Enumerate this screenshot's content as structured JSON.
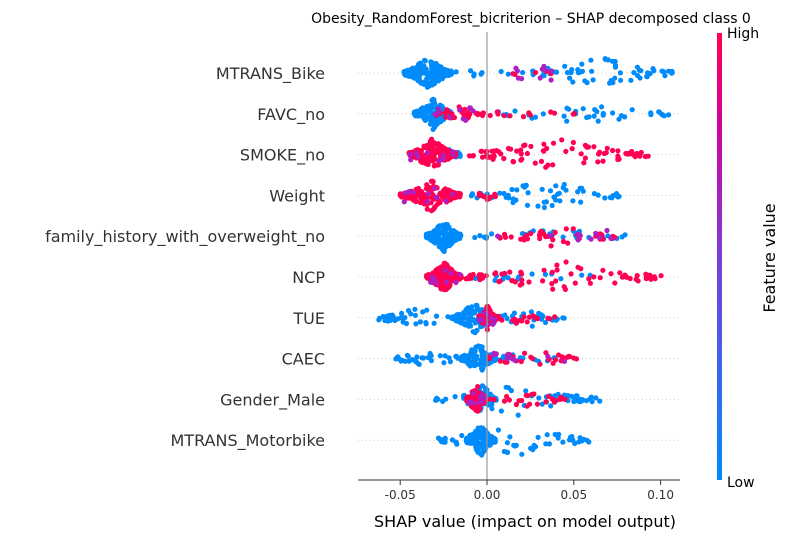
{
  "chart_data": {
    "type": "scatter",
    "title": "Obesity_RandomForest_bicriterion – SHAP decomposed class 0",
    "xlabel": "SHAP value (impact on model output)",
    "xlim": [
      -0.075,
      0.115
    ],
    "xticks": [
      "-0.05",
      "0.00",
      "0.05",
      "0.10"
    ],
    "xtick_values": [
      -0.05,
      0.0,
      0.05,
      0.1
    ],
    "colorbar": {
      "label": "Feature value",
      "high": "High",
      "low": "Low",
      "high_color": "#ff0052",
      "low_color": "#008bfb"
    },
    "zero_line_color": "#999999",
    "features": [
      {
        "name": "MTRANS_Bike",
        "low_ranges": [
          [
            -0.048,
            -0.02,
            200
          ],
          [
            -0.02,
            0.015,
            8
          ],
          [
            0.02,
            0.11,
            60
          ]
        ],
        "high_ranges": [
          [
            0.012,
            0.04,
            5
          ]
        ]
      },
      {
        "name": "FAVC_no",
        "low_ranges": [
          [
            -0.042,
            -0.02,
            160
          ],
          [
            0.005,
            0.105,
            40
          ]
        ],
        "high_ranges": [
          [
            -0.03,
            0.0,
            30
          ],
          [
            0.0,
            0.055,
            12
          ]
        ]
      },
      {
        "name": "SMOKE_no",
        "low_ranges": [
          [
            -0.03,
            -0.015,
            20
          ]
        ],
        "high_ranges": [
          [
            -0.045,
            -0.018,
            200
          ],
          [
            -0.015,
            0.095,
            80
          ]
        ]
      },
      {
        "name": "Weight",
        "low_ranges": [
          [
            -0.01,
            0.078,
            60
          ]
        ],
        "high_ranges": [
          [
            -0.05,
            -0.015,
            150
          ],
          [
            -0.005,
            0.005,
            10
          ]
        ]
      },
      {
        "name": "family_history_with_overweight_no",
        "low_ranges": [
          [
            -0.035,
            -0.015,
            170
          ],
          [
            -0.01,
            0.085,
            30
          ]
        ],
        "high_ranges": [
          [
            0.005,
            0.075,
            40
          ]
        ]
      },
      {
        "name": "NCP",
        "low_ranges": [
          [
            -0.02,
            0.06,
            15
          ]
        ],
        "high_ranges": [
          [
            -0.035,
            -0.015,
            150
          ],
          [
            -0.015,
            0.103,
            70
          ]
        ]
      },
      {
        "name": "TUE",
        "low_ranges": [
          [
            -0.065,
            -0.015,
            35
          ],
          [
            -0.02,
            0.005,
            120
          ],
          [
            0.005,
            0.045,
            30
          ]
        ],
        "high_ranges": [
          [
            -0.005,
            0.005,
            50
          ],
          [
            0.0,
            0.04,
            20
          ]
        ]
      },
      {
        "name": "CAEC",
        "low_ranges": [
          [
            -0.053,
            -0.015,
            30
          ],
          [
            -0.015,
            0.005,
            140
          ],
          [
            0.005,
            0.04,
            20
          ]
        ],
        "high_ranges": [
          [
            0.0,
            0.052,
            30
          ]
        ]
      },
      {
        "name": "Gender_Male",
        "low_ranges": [
          [
            -0.03,
            0.065,
            60
          ],
          [
            -0.01,
            0.005,
            70
          ]
        ],
        "high_ranges": [
          [
            -0.012,
            0.0,
            80
          ],
          [
            0.0,
            0.045,
            25
          ]
        ]
      },
      {
        "name": "MTRANS_Motorbike",
        "low_ranges": [
          [
            -0.03,
            0.062,
            60
          ],
          [
            -0.012,
            0.005,
            150
          ]
        ],
        "high_ranges": []
      }
    ]
  }
}
